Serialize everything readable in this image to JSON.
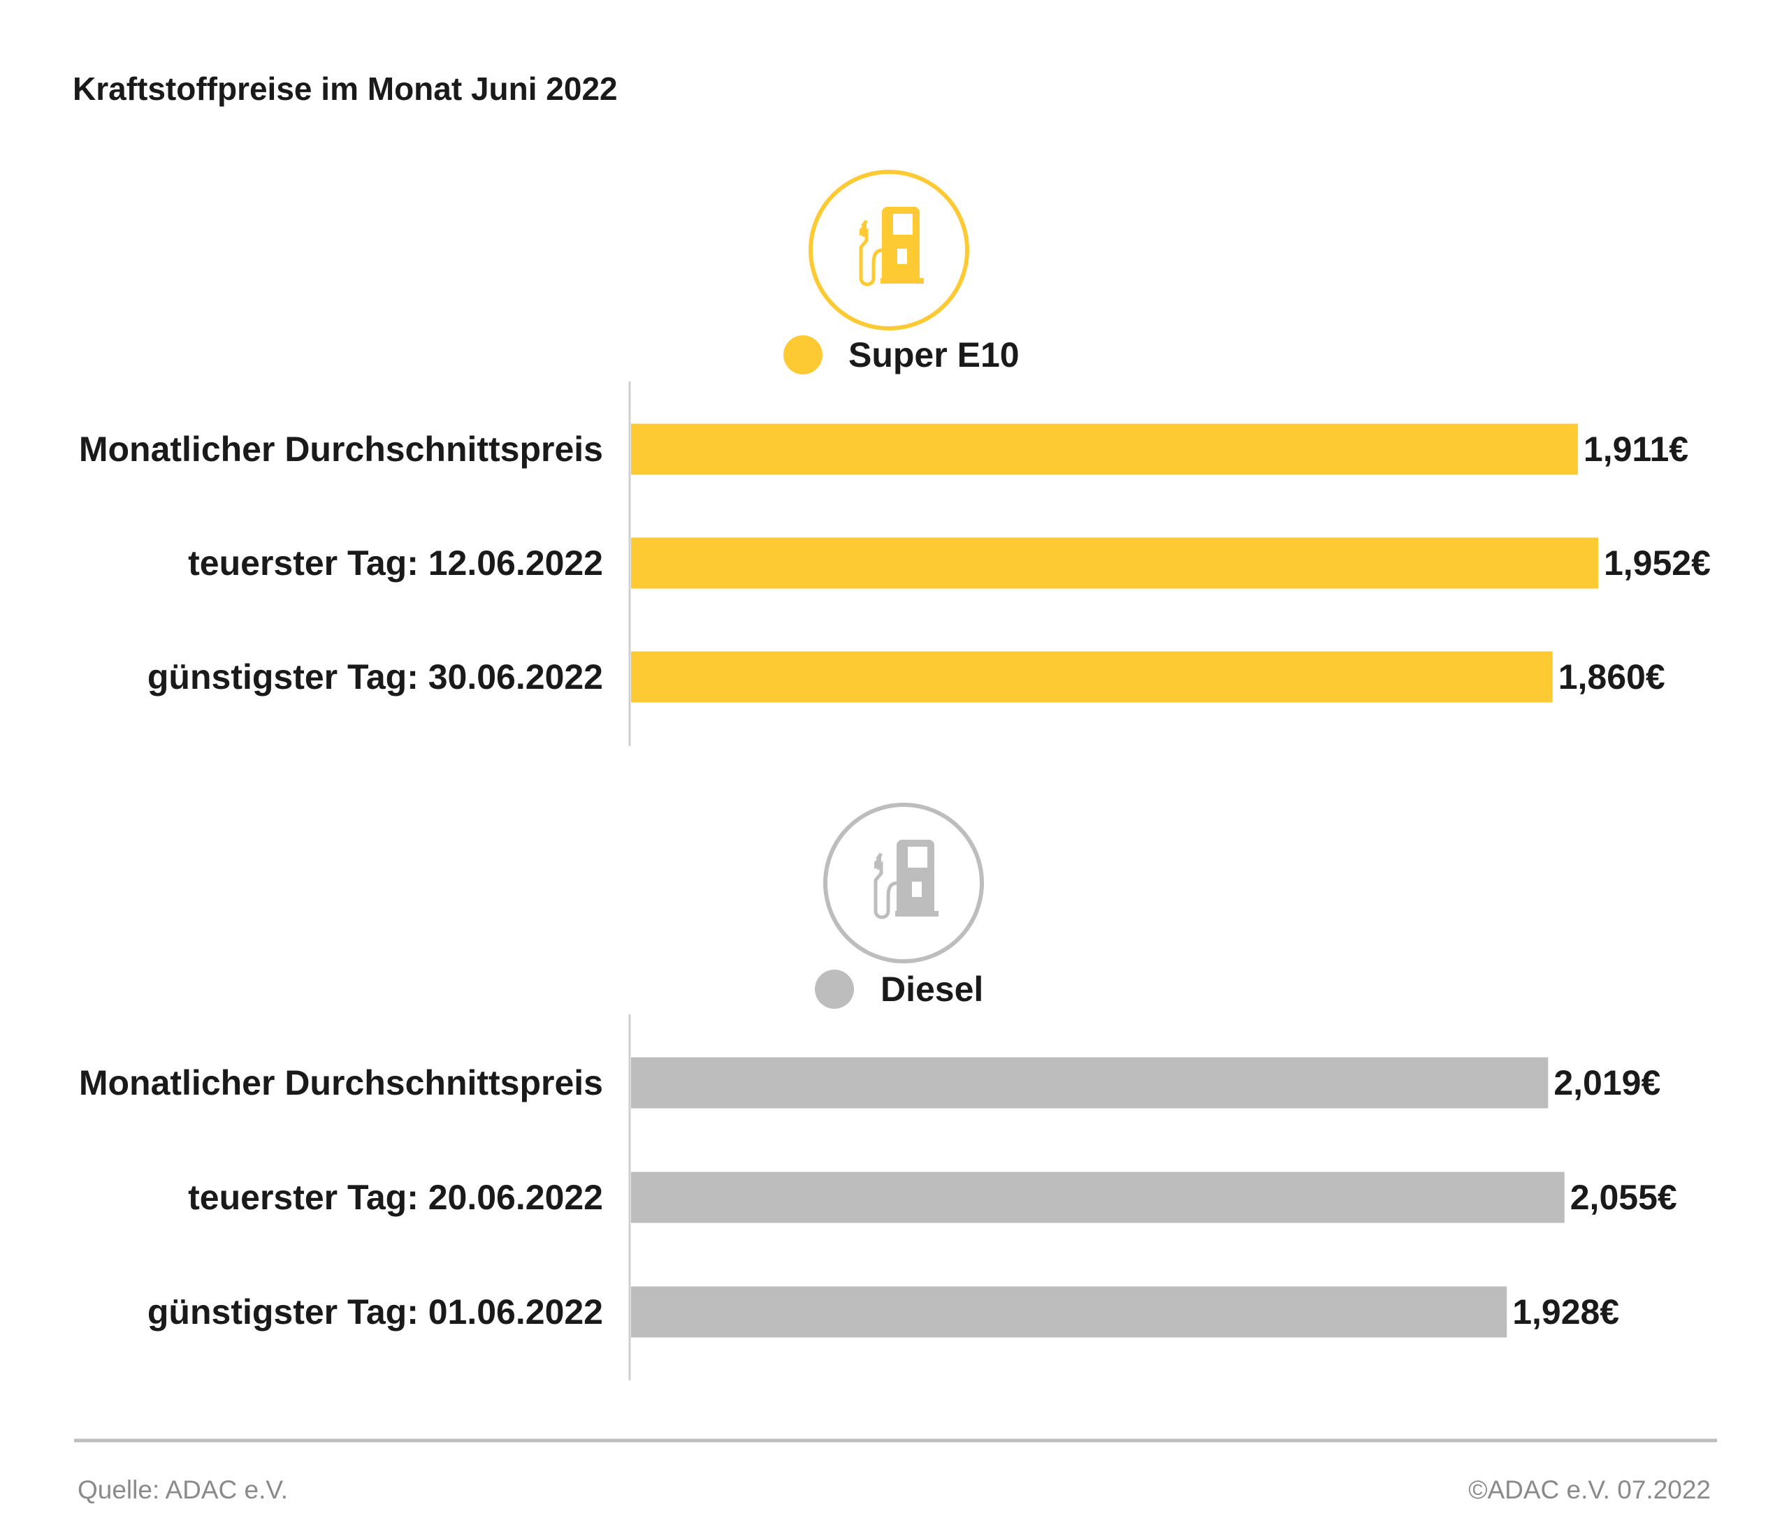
{
  "chart_data": [
    {
      "type": "bar",
      "orientation": "horizontal",
      "title": "Kraftstoffpreise im Monat Juni 2022",
      "series_name": "Super E10",
      "icon": "fuel-pump-icon",
      "color": "#FDCA33",
      "categories": [
        "Monatlicher Durchschnittspreis",
        "teuerster Tag: 12.06.2022",
        "günstigster Tag: 30.06.2022"
      ],
      "values": [
        1.911,
        1.952,
        1.86
      ],
      "labels": [
        "1,911€",
        "1,952€",
        "1,860€"
      ],
      "xlim": [
        0,
        2.2
      ]
    },
    {
      "type": "bar",
      "orientation": "horizontal",
      "series_name": "Diesel",
      "icon": "fuel-pump-icon",
      "color": "#BDBDBD",
      "categories": [
        "Monatlicher Durchschnittspreis",
        "teuerster Tag: 20.06.2022",
        "günstigster Tag: 01.06.2022"
      ],
      "values": [
        2.019,
        2.055,
        1.928
      ],
      "labels": [
        "2,019€",
        "2,055€",
        "1,928€"
      ],
      "xlim": [
        0,
        2.4
      ]
    }
  ],
  "footer": {
    "source": "Quelle: ADAC e.V.",
    "copyright": "©ADAC e.V. 07.2022"
  }
}
